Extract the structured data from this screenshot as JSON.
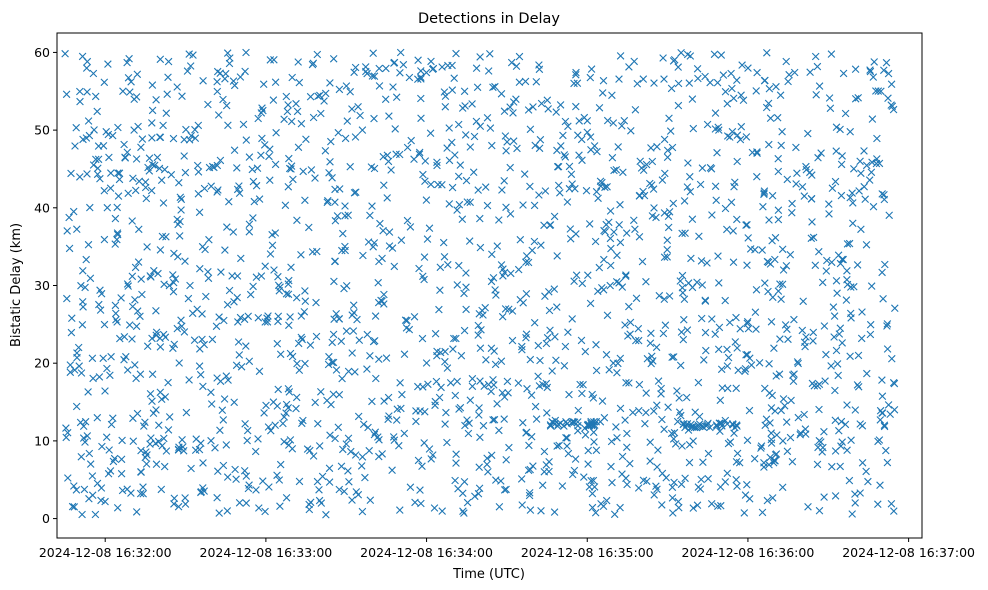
{
  "chart_data": {
    "type": "scatter",
    "title": "Detections in Delay",
    "xlabel": "Time (UTC)",
    "ylabel": "Bistatic Delay (km)",
    "x_start": "2024-12-08 16:31:45",
    "x_end": "2024-12-08 16:36:55",
    "xlim": [
      "2024-12-08 16:31:42",
      "2024-12-08 16:37:05"
    ],
    "ylim": [
      -2.5,
      62.5
    ],
    "x_ticks": [
      "2024-12-08 16:32:00",
      "2024-12-08 16:33:00",
      "2024-12-08 16:34:00",
      "2024-12-08 16:35:00",
      "2024-12-08 16:36:00",
      "2024-12-08 16:37:00"
    ],
    "y_ticks": [
      "0",
      "10",
      "20",
      "30",
      "40",
      "50",
      "60"
    ],
    "marker": "x",
    "grid": false,
    "legend": false,
    "color": "#1f77b4",
    "clusters": [
      {
        "time": "2024-12-08 16:34:56",
        "delay": 12.2
      },
      {
        "time": "2024-12-08 16:35:46",
        "delay": 12.0
      }
    ],
    "approx_point_count": 1900
  }
}
